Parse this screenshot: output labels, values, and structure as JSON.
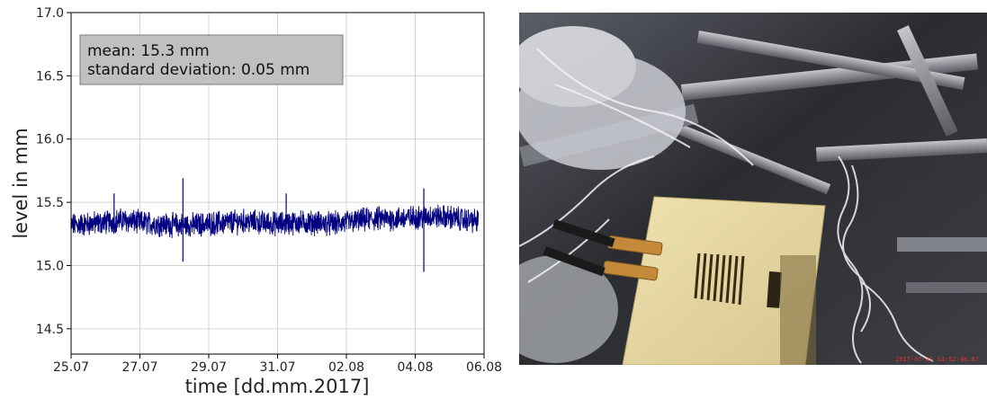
{
  "chart_data": {
    "type": "line",
    "xlabel": "time [dd.mm.2017]",
    "ylabel": "level in mm",
    "x_ticks": [
      "25.07",
      "27.07",
      "29.07",
      "31.07",
      "02.08",
      "04.08",
      "06.08"
    ],
    "x_range": [
      "25.07",
      "06.08"
    ],
    "ylim": [
      14.3,
      17.0
    ],
    "y_ticks": [
      "14.5",
      "15.0",
      "15.5",
      "16.0",
      "16.5",
      "17.0"
    ],
    "grid": true,
    "series": [
      {
        "color": "#000080",
        "points": [
          {
            "x": "25.07",
            "y": 15.32
          },
          {
            "x": "25.07 12:00",
            "y": 15.33
          },
          {
            "x": "26.07",
            "y": 15.34
          },
          {
            "x": "26.07 12:00",
            "y": 15.36
          },
          {
            "x": "27.07",
            "y": 15.34
          },
          {
            "x": "27.07 12:00",
            "y": 15.33
          },
          {
            "x": "28.07",
            "y": 15.32
          },
          {
            "x": "28.07 12:00",
            "y": 15.32
          },
          {
            "x": "29.07",
            "y": 15.33
          },
          {
            "x": "29.07 12:00",
            "y": 15.34
          },
          {
            "x": "30.07",
            "y": 15.35
          },
          {
            "x": "30.07 12:00",
            "y": 15.34
          },
          {
            "x": "31.07",
            "y": 15.33
          },
          {
            "x": "31.07 12:00",
            "y": 15.34
          },
          {
            "x": "01.08",
            "y": 15.34
          },
          {
            "x": "01.08 12:00",
            "y": 15.33
          },
          {
            "x": "02.08",
            "y": 15.34
          },
          {
            "x": "02.08 12:00",
            "y": 15.36
          },
          {
            "x": "03.08",
            "y": 15.37
          },
          {
            "x": "03.08 12:00",
            "y": 15.37
          },
          {
            "x": "04.08",
            "y": 15.38
          },
          {
            "x": "04.08 12:00",
            "y": 15.39
          },
          {
            "x": "05.08",
            "y": 15.38
          },
          {
            "x": "05.08 12:00",
            "y": 15.36
          },
          {
            "x": "05.08 20:00",
            "y": 15.35
          }
        ],
        "spikes": [
          {
            "x": "26.07 06:00",
            "y": 15.57
          },
          {
            "x": "28.07 06:00",
            "y": 15.69
          },
          {
            "x": "28.07 06:00",
            "y": 15.03
          },
          {
            "x": "31.07 06:00",
            "y": 15.57
          },
          {
            "x": "04.08 06:00",
            "y": 15.61
          },
          {
            "x": "04.08 06:00",
            "y": 14.95
          }
        ]
      }
    ],
    "annotation": {
      "lines": [
        "mean: 15.3 mm",
        "standard deviation: 0.05 mm"
      ],
      "background": "#c0c0c0"
    }
  },
  "photo": {
    "timestamp": "2017-07-26 14:52:48.07"
  }
}
